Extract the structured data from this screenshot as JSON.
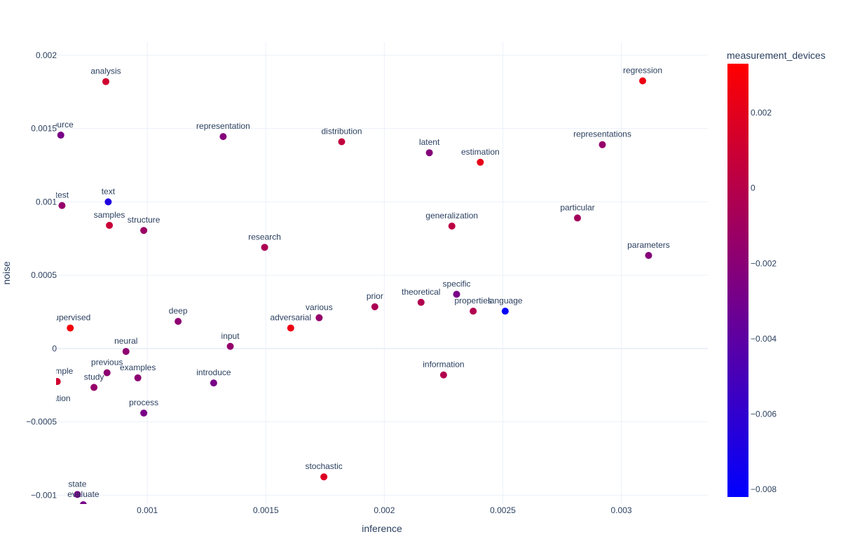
{
  "chart_data": {
    "type": "scatter",
    "xlabel": "inference",
    "ylabel": "noise",
    "xlim": [
      0.000615,
      0.003365
    ],
    "ylim": [
      -0.00106,
      0.00209
    ],
    "x_ticks": [
      {
        "value": 0.001,
        "label": "0.001"
      },
      {
        "value": 0.0015,
        "label": "0.0015"
      },
      {
        "value": 0.002,
        "label": "0.002"
      },
      {
        "value": 0.0025,
        "label": "0.0025"
      },
      {
        "value": 0.003,
        "label": "0.003"
      }
    ],
    "y_ticks": [
      {
        "value": -0.001,
        "label": "−0.001"
      },
      {
        "value": -0.0005,
        "label": "−0.0005"
      },
      {
        "value": 0,
        "label": "0"
      },
      {
        "value": 0.0005,
        "label": "0.0005"
      },
      {
        "value": 0.001,
        "label": "0.001"
      },
      {
        "value": 0.0015,
        "label": "0.0015"
      },
      {
        "value": 0.002,
        "label": "0.002"
      }
    ],
    "grid": true,
    "colorbar": {
      "title": "measurement_devices",
      "min": -0.0082,
      "max": 0.0033,
      "colorscale": [
        "#0000ff",
        "#ff0000"
      ],
      "ticks": [
        {
          "value": 0.002,
          "label": "0.002"
        },
        {
          "value": 0,
          "label": "0"
        },
        {
          "value": -0.002,
          "label": "−0.002"
        },
        {
          "value": -0.004,
          "label": "−0.004"
        },
        {
          "value": -0.006,
          "label": "−0.006"
        },
        {
          "value": -0.008,
          "label": "−0.008"
        }
      ]
    },
    "points": [
      {
        "label": "analysis",
        "x": 0.000825,
        "y": 0.00182,
        "c": 0.0012
      },
      {
        "label": "regression",
        "x": 0.00309,
        "y": 0.001825,
        "c": 0.0025
      },
      {
        "label": "source",
        "x": 0.000635,
        "y": 0.001455,
        "c": -0.0028
      },
      {
        "label": "representation",
        "x": 0.00132,
        "y": 0.001445,
        "c": -0.0022
      },
      {
        "label": "distribution",
        "x": 0.00182,
        "y": 0.00141,
        "c": 0.0005
      },
      {
        "label": "latent",
        "x": 0.00219,
        "y": 0.001335,
        "c": -0.0022
      },
      {
        "label": "estimation",
        "x": 0.002405,
        "y": 0.00127,
        "c": 0.0022
      },
      {
        "label": "representations",
        "x": 0.00292,
        "y": 0.00139,
        "c": -0.0015
      },
      {
        "label": "test",
        "x": 0.00064,
        "y": 0.000975,
        "c": -0.0015
      },
      {
        "label": "text",
        "x": 0.000835,
        "y": 0.001,
        "c": -0.0068
      },
      {
        "label": "samples",
        "x": 0.00084,
        "y": 0.00084,
        "c": 0.0008
      },
      {
        "label": "structure",
        "x": 0.000985,
        "y": 0.000805,
        "c": -0.0012
      },
      {
        "label": "generalization",
        "x": 0.002285,
        "y": 0.000835,
        "c": 0.0003
      },
      {
        "label": "particular",
        "x": 0.002815,
        "y": 0.00089,
        "c": -0.0008
      },
      {
        "label": "research",
        "x": 0.001495,
        "y": 0.00069,
        "c": -0.0005
      },
      {
        "label": "parameters",
        "x": 0.003115,
        "y": 0.000635,
        "c": -0.0022
      },
      {
        "label": "specific",
        "x": 0.002305,
        "y": 0.00037,
        "c": -0.0028
      },
      {
        "label": "prior",
        "x": 0.00196,
        "y": 0.000285,
        "c": -0.0005
      },
      {
        "label": "theoretical",
        "x": 0.002155,
        "y": 0.000315,
        "c": -0.0002
      },
      {
        "label": "properties",
        "x": 0.002375,
        "y": 0.000255,
        "c": -0.0002
      },
      {
        "label": "language",
        "x": 0.00251,
        "y": 0.000255,
        "c": -0.0079
      },
      {
        "label": "deep",
        "x": 0.00113,
        "y": 0.000185,
        "c": -0.0018
      },
      {
        "label": "various",
        "x": 0.001725,
        "y": 0.00021,
        "c": -0.0015
      },
      {
        "label": "adversarial",
        "x": 0.001605,
        "y": 0.00014,
        "c": 0.0025
      },
      {
        "label": "supervised",
        "x": 0.000675,
        "y": 0.00014,
        "c": 0.0028
      },
      {
        "label": "neural",
        "x": 0.00091,
        "y": -2e-05,
        "c": -0.0018
      },
      {
        "label": "input",
        "x": 0.00135,
        "y": 1.5e-05,
        "c": -0.0015
      },
      {
        "label": "example",
        "x": 0.00062,
        "y": -0.000225,
        "c": 0.0012
      },
      {
        "label": "previous",
        "x": 0.00083,
        "y": -0.000165,
        "c": -0.0018
      },
      {
        "label": "examples",
        "x": 0.00096,
        "y": -0.0002,
        "c": -0.0018
      },
      {
        "label": "study",
        "x": 0.000775,
        "y": -0.000265,
        "c": -0.0015
      },
      {
        "label": "introduce",
        "x": 0.00128,
        "y": -0.000235,
        "c": -0.0028
      },
      {
        "label": "information",
        "x": 0.00225,
        "y": -0.00018,
        "c": -0.0002
      },
      {
        "label": "evaluation",
        "x": 0.000595,
        "y": -0.00041,
        "c": -0.002
      },
      {
        "label": "process",
        "x": 0.000985,
        "y": -0.00044,
        "c": -0.0028
      },
      {
        "label": "stochastic",
        "x": 0.001745,
        "y": -0.000875,
        "c": 0.0018
      },
      {
        "label": "state",
        "x": 0.000705,
        "y": -0.000995,
        "c": -0.0028
      },
      {
        "label": "evaluate",
        "x": 0.00073,
        "y": -0.001065,
        "c": -0.0028
      }
    ]
  }
}
